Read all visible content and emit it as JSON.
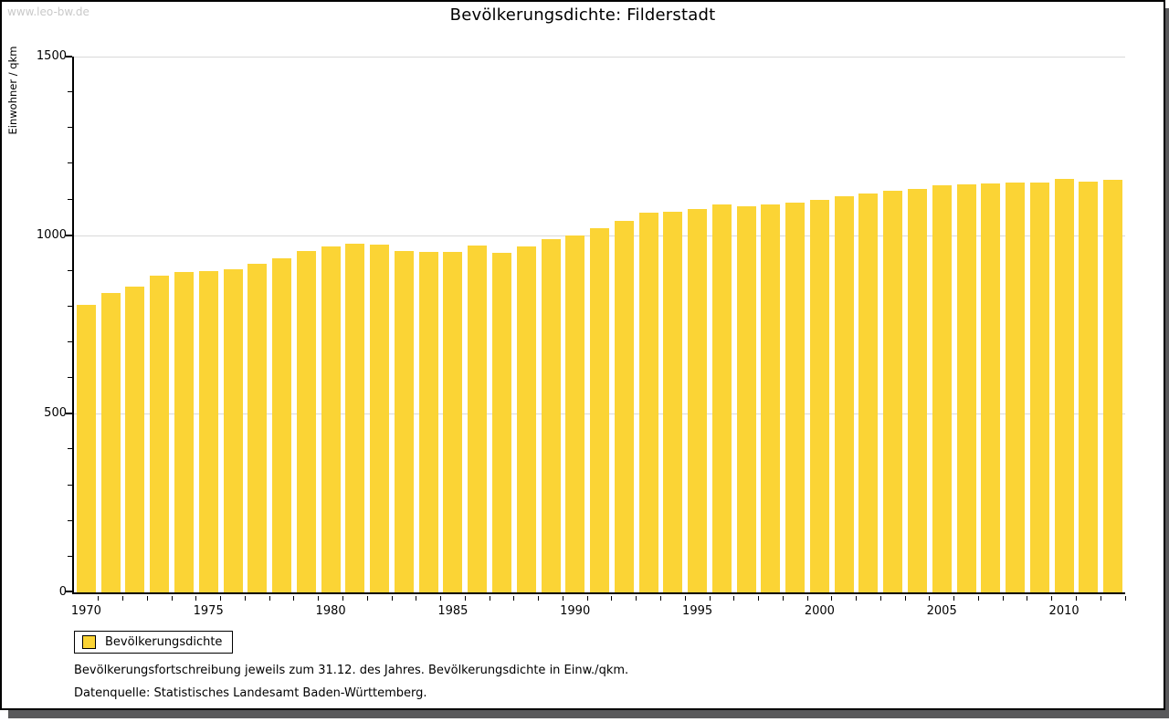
{
  "watermark": "www.leo-bw.de",
  "title": "Bevölkerungsdichte: Filderstadt",
  "legend": {
    "label": "Bevölkerungsdichte"
  },
  "footnote_line1": "Bevölkerungsfortschreibung jeweils zum 31.12. des Jahres. Bevölkerungsdichte in Einw./qkm.",
  "footnote_line2": "Datenquelle: Statistisches Landesamt Baden-Württemberg.",
  "colors": {
    "bar": "#fbd435",
    "grid": "#d9d9d9",
    "axis": "#000000",
    "watermark": "#c9c9c9",
    "frame_shadow": "#59595b"
  },
  "chart_data": {
    "type": "bar",
    "title": "Bevölkerungsdichte: Filderstadt",
    "xlabel": "",
    "ylabel": "Einwohner / qkm",
    "ylim": [
      0,
      1500
    ],
    "y_major_ticks": [
      0,
      500,
      1000,
      1500
    ],
    "y_minor_tick_interval": 100,
    "x_labeled_years": [
      1970,
      1975,
      1980,
      1985,
      1990,
      1995,
      2000,
      2005,
      2010
    ],
    "grid": "horizontal-major",
    "legend_position": "bottom-left",
    "series_name": "Bevölkerungsdichte",
    "categories": [
      1970,
      1971,
      1972,
      1973,
      1974,
      1975,
      1976,
      1977,
      1978,
      1979,
      1980,
      1981,
      1982,
      1983,
      1984,
      1985,
      1986,
      1987,
      1988,
      1989,
      1990,
      1991,
      1992,
      1993,
      1994,
      1995,
      1996,
      1997,
      1998,
      1999,
      2000,
      2001,
      2002,
      2003,
      2004,
      2005,
      2006,
      2007,
      2008,
      2009,
      2010,
      2011,
      2012
    ],
    "values": [
      806,
      837,
      855,
      886,
      898,
      900,
      905,
      920,
      935,
      955,
      968,
      977,
      973,
      956,
      954,
      953,
      970,
      950,
      969,
      988,
      1000,
      1020,
      1040,
      1062,
      1065,
      1072,
      1087,
      1080,
      1085,
      1090,
      1098,
      1110,
      1117,
      1124,
      1130,
      1139,
      1141,
      1144,
      1147,
      1148,
      1157,
      1149,
      1156
    ]
  }
}
